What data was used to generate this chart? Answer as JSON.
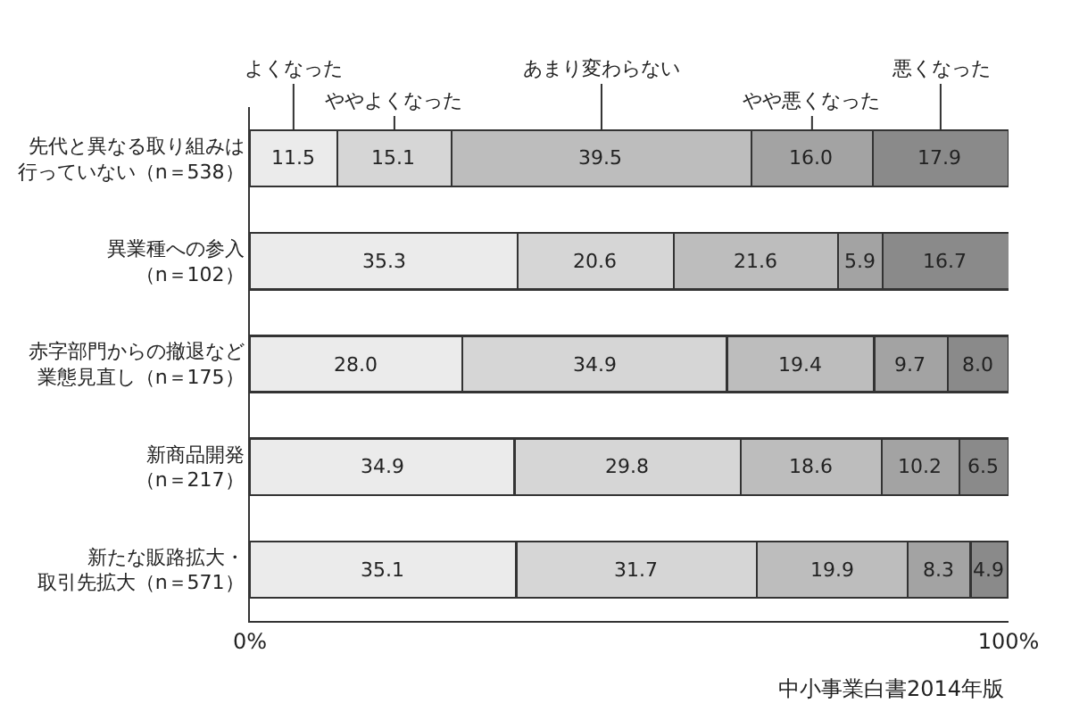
{
  "chart_data": {
    "type": "bar",
    "orientation": "horizontal",
    "stacked": true,
    "legend": "top",
    "categories": [
      "先代と異なる取り組みは行っていない（n＝538）",
      "異業種への参入（n＝102）",
      "赤字部門からの撤退など業態見直し（n＝175）",
      "新商品開発（n＝217）",
      "新たな販路拡大・取引先拡大（n＝571）"
    ],
    "series": [
      {
        "name": "よくなった",
        "color": "#ebebeb",
        "values": [
          11.5,
          35.3,
          28.0,
          34.9,
          35.1
        ],
        "value_labels": [
          "11.5",
          "35.3",
          "28.0",
          "34.9",
          "35.1"
        ]
      },
      {
        "name": "ややよくなった",
        "color": "#d6d6d6",
        "values": [
          15.1,
          20.6,
          34.9,
          29.8,
          31.7
        ],
        "value_labels": [
          "15.1",
          "20.6",
          "34.9",
          "29.8",
          "31.7"
        ]
      },
      {
        "name": "あまり変わらない",
        "color": "#bdbdbd",
        "values": [
          39.5,
          21.6,
          19.4,
          18.6,
          19.9
        ],
        "value_labels": [
          "39.5",
          "21.6",
          "19.4",
          "18.6",
          "19.9"
        ]
      },
      {
        "name": "やや悪くなった",
        "color": "#a3a3a3",
        "values": [
          16.0,
          5.9,
          9.7,
          10.2,
          8.3
        ],
        "value_labels": [
          "16.0",
          "5.9",
          "9.7",
          "10.2",
          "8.3"
        ]
      },
      {
        "name": "悪くなった",
        "color": "#8a8a8a",
        "values": [
          17.9,
          16.7,
          8.0,
          6.5,
          4.9
        ],
        "value_labels": [
          "17.9",
          "16.7",
          "8.0",
          "6.5",
          "4.9"
        ]
      }
    ],
    "xlim": [
      0,
      100
    ],
    "xticks": [
      {
        "value": 0,
        "label": "0%"
      },
      {
        "value": 100,
        "label": "100%"
      }
    ],
    "annotations": [
      "中小事業白書2014年版"
    ]
  }
}
